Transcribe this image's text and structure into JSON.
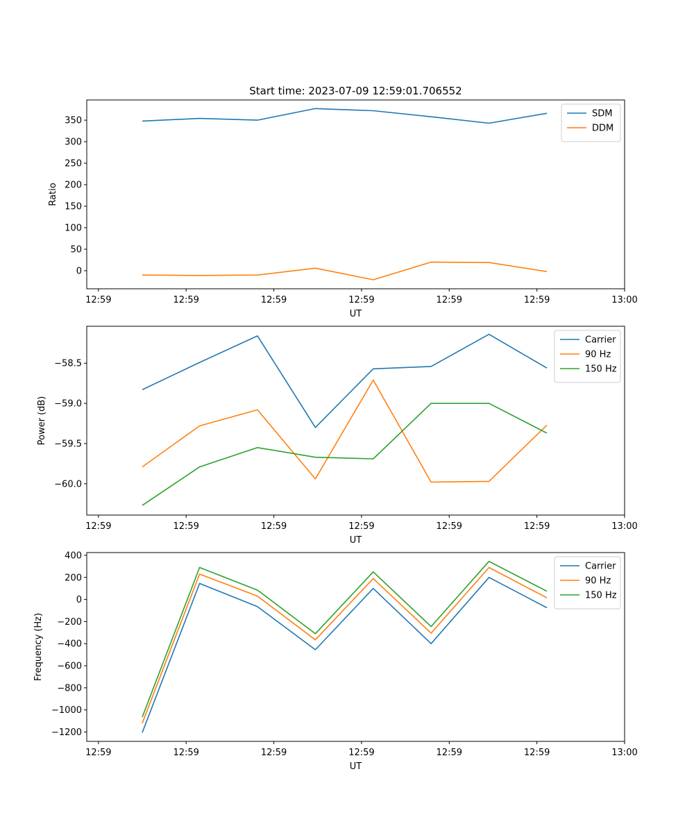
{
  "chart_data": [
    {
      "type": "line",
      "title": "Start time: 2023-07-09 12:59:01.706552",
      "xlabel": "UT",
      "ylabel": "Ratio",
      "xlim": [
        -0.75,
        8.45
      ],
      "ylim": [
        -42,
        397
      ],
      "x_ticks": [
        {
          "value": -0.55,
          "label": "12:59"
        },
        {
          "value": 0.95,
          "label": "12:59"
        },
        {
          "value": 2.45,
          "label": "12:59"
        },
        {
          "value": 3.95,
          "label": "12:59"
        },
        {
          "value": 5.45,
          "label": "12:59"
        },
        {
          "value": 6.95,
          "label": "12:59"
        },
        {
          "value": 8.45,
          "label": "13:00"
        }
      ],
      "y_ticks": [
        {
          "value": 350,
          "label": "350"
        },
        {
          "value": 300,
          "label": "300"
        },
        {
          "value": 250,
          "label": "250"
        },
        {
          "value": 200,
          "label": "200"
        },
        {
          "value": 150,
          "label": "150"
        },
        {
          "value": 100,
          "label": "100"
        },
        {
          "value": 50,
          "label": "50"
        },
        {
          "value": 0,
          "label": "0"
        }
      ],
      "x": [
        0.2,
        1.18,
        2.17,
        3.16,
        4.15,
        5.14,
        6.13,
        7.12
      ],
      "legend_position": "top-right",
      "series": [
        {
          "name": "SDM",
          "color": "#1f77b4",
          "values": [
            348,
            354,
            350,
            377,
            372,
            358,
            343,
            366
          ]
        },
        {
          "name": "DDM",
          "color": "#ff7f0e",
          "values": [
            -10,
            -11,
            -10,
            6,
            -21,
            20,
            19,
            -2
          ]
        }
      ]
    },
    {
      "type": "line",
      "title": "",
      "xlabel": "UT",
      "ylabel": "Power (dB)",
      "xlim": [
        -0.75,
        8.45
      ],
      "ylim": [
        -60.39,
        -58.04
      ],
      "x_ticks": [
        {
          "value": -0.55,
          "label": "12:59"
        },
        {
          "value": 0.95,
          "label": "12:59"
        },
        {
          "value": 2.45,
          "label": "12:59"
        },
        {
          "value": 3.95,
          "label": "12:59"
        },
        {
          "value": 5.45,
          "label": "12:59"
        },
        {
          "value": 6.95,
          "label": "12:59"
        },
        {
          "value": 8.45,
          "label": "13:00"
        }
      ],
      "y_ticks": [
        {
          "value": -58.5,
          "label": "−58.5"
        },
        {
          "value": -59.0,
          "label": "−59.0"
        },
        {
          "value": -59.5,
          "label": "−59.5"
        },
        {
          "value": -60.0,
          "label": "−60.0"
        }
      ],
      "x": [
        0.2,
        1.18,
        2.17,
        3.16,
        4.15,
        5.14,
        6.13,
        7.12
      ],
      "legend_position": "top-right",
      "series": [
        {
          "name": "Carrier",
          "color": "#1f77b4",
          "values": [
            -58.83,
            -58.49,
            -58.16,
            -59.3,
            -58.57,
            -58.54,
            -58.14,
            -58.56
          ]
        },
        {
          "name": "90 Hz",
          "color": "#ff7f0e",
          "values": [
            -59.79,
            -59.28,
            -59.08,
            -59.94,
            -58.71,
            -59.98,
            -59.97,
            -59.27
          ]
        },
        {
          "name": "150 Hz",
          "color": "#2ca02c",
          "values": [
            -60.27,
            -59.79,
            -59.55,
            -59.67,
            -59.69,
            -59.0,
            -59.0,
            -59.37
          ]
        }
      ]
    },
    {
      "type": "line",
      "title": "",
      "xlabel": "UT",
      "ylabel": "Frequency (Hz)",
      "xlim": [
        -0.75,
        8.45
      ],
      "ylim": [
        -1285,
        425
      ],
      "x_ticks": [
        {
          "value": -0.55,
          "label": "12:59"
        },
        {
          "value": 0.95,
          "label": "12:59"
        },
        {
          "value": 2.45,
          "label": "12:59"
        },
        {
          "value": 3.95,
          "label": "12:59"
        },
        {
          "value": 5.45,
          "label": "12:59"
        },
        {
          "value": 6.95,
          "label": "12:59"
        },
        {
          "value": 8.45,
          "label": "13:00"
        }
      ],
      "y_ticks": [
        {
          "value": 400,
          "label": "400"
        },
        {
          "value": 200,
          "label": "200"
        },
        {
          "value": 0,
          "label": "0"
        },
        {
          "value": -200,
          "label": "−200"
        },
        {
          "value": -400,
          "label": "−400"
        },
        {
          "value": -600,
          "label": "−600"
        },
        {
          "value": -800,
          "label": "−800"
        },
        {
          "value": -1000,
          "label": "−1000"
        },
        {
          "value": -1200,
          "label": "−1200"
        }
      ],
      "x": [
        0.2,
        1.18,
        2.17,
        3.16,
        4.15,
        5.14,
        6.13,
        7.12
      ],
      "legend_position": "top-right",
      "series": [
        {
          "name": "Carrier",
          "color": "#1f77b4",
          "values": [
            -1205,
            145,
            -65,
            -455,
            100,
            -400,
            200,
            -75
          ]
        },
        {
          "name": "90 Hz",
          "color": "#ff7f0e",
          "values": [
            -1120,
            230,
            30,
            -365,
            190,
            -305,
            290,
            15
          ]
        },
        {
          "name": "150 Hz",
          "color": "#2ca02c",
          "values": [
            -1065,
            290,
            85,
            -310,
            250,
            -245,
            345,
            75
          ]
        }
      ]
    }
  ]
}
